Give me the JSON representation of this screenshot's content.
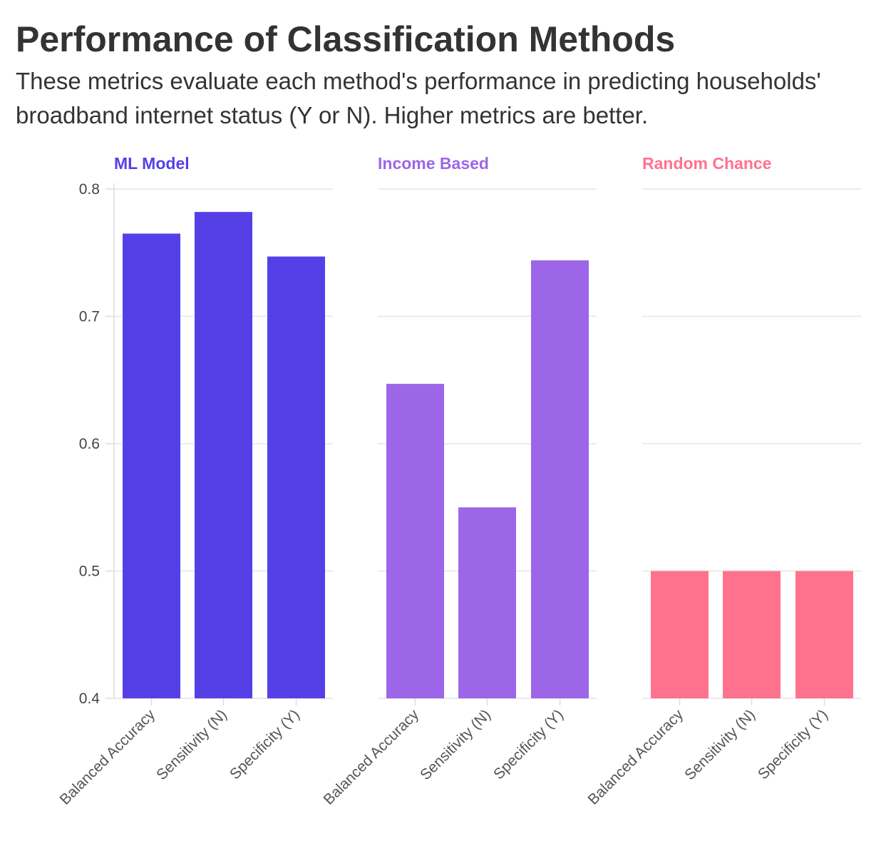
{
  "chart_data": {
    "type": "bar",
    "title": "Performance of Classification Methods",
    "subtitle": "These metrics evaluate each method's performance in predicting households' broadband internet status (Y or N). Higher metrics are better.",
    "xlabel": "",
    "ylabel": "",
    "ylim": [
      0.4,
      0.8
    ],
    "yticks": [
      0.4,
      0.5,
      0.6,
      0.7,
      0.8
    ],
    "ytick_labels": [
      "0.4",
      "0.5",
      "0.6",
      "0.7",
      "0.8"
    ],
    "grid": true,
    "categories": [
      "Balanced Accuracy",
      "Sensitivity (N)",
      "Specificity (Y)"
    ],
    "facets": [
      {
        "name": "ML Model",
        "color": "#5540E8",
        "values": [
          0.765,
          0.782,
          0.747
        ]
      },
      {
        "name": "Income Based",
        "color": "#9D66E8",
        "values": [
          0.647,
          0.55,
          0.744
        ]
      },
      {
        "name": "Random Chance",
        "color": "#FF728E",
        "values": [
          0.5,
          0.5,
          0.5
        ]
      }
    ]
  }
}
